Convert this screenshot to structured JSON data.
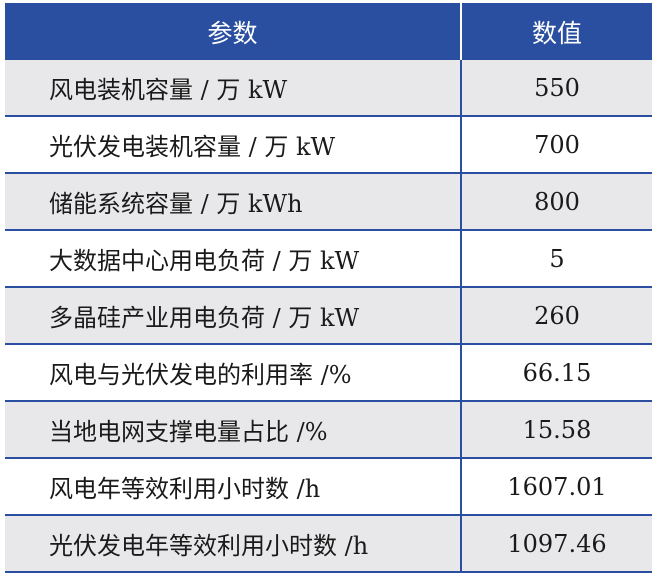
{
  "table": {
    "headers": [
      "参数",
      "数值"
    ],
    "rows": [
      {
        "param": "风电装机容量 / 万 kW",
        "value": "550"
      },
      {
        "param": "光伏发电装机容量 / 万 kW",
        "value": "700"
      },
      {
        "param": "储能系统容量 / 万 kWh",
        "value": "800"
      },
      {
        "param": "大数据中心用电负荷 / 万 kW",
        "value": "5"
      },
      {
        "param": "多晶硅产业用电负荷 / 万 kW",
        "value": "260"
      },
      {
        "param": "风电与光伏发电的利用率 /%",
        "value": "66.15"
      },
      {
        "param": "当地电网支撑电量占比 /%",
        "value": "15.58"
      },
      {
        "param": "风电年等效利用小时数 /h",
        "value": "1607.01"
      },
      {
        "param": "光伏发电年等效利用小时数 /h",
        "value": "1097.46"
      }
    ],
    "header_color": "#2a4fa0",
    "stripe_color": "#e8e8ea"
  }
}
